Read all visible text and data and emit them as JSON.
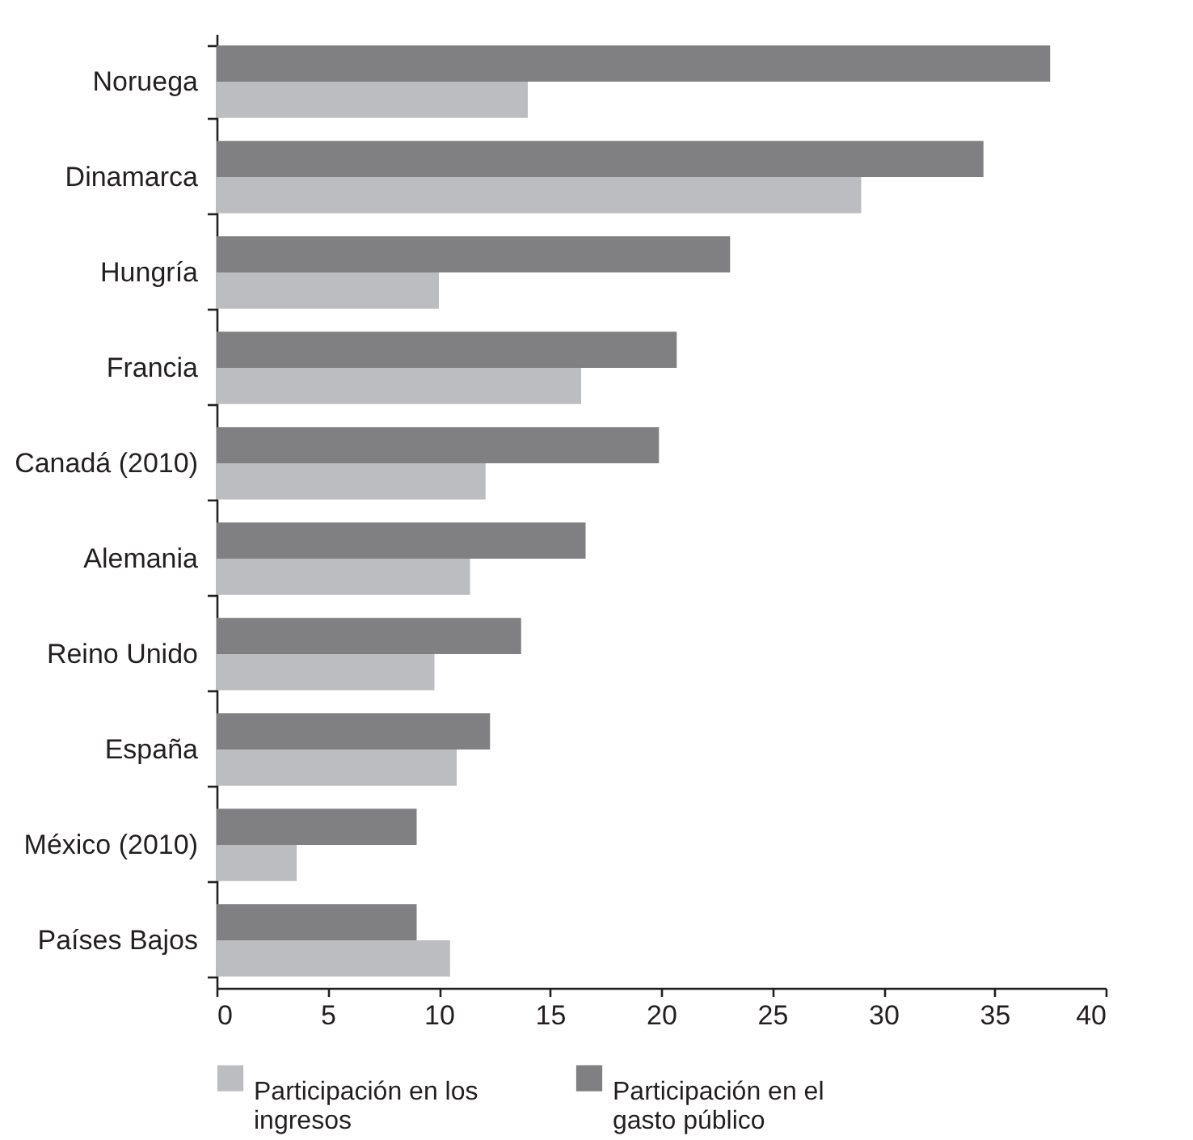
{
  "chart_data": {
    "type": "bar",
    "orientation": "horizontal",
    "categories": [
      "Noruega",
      "Dinamarca",
      "Hungría",
      "Francia",
      "Canadá (2010)",
      "Alemania",
      "Reino Unido",
      "España",
      "México (2010)",
      "Países Bajos"
    ],
    "series": [
      {
        "name": "Participación en los ingresos",
        "color": "#bcbdc0",
        "values": [
          14.0,
          29.0,
          10.0,
          16.4,
          12.1,
          11.4,
          9.8,
          10.8,
          3.6,
          10.5
        ]
      },
      {
        "name": "Participación en el gasto público",
        "color": "#808083",
        "values": [
          37.5,
          34.5,
          23.1,
          20.7,
          19.9,
          16.6,
          13.7,
          12.3,
          9.0,
          9.0
        ]
      }
    ],
    "xlim": [
      0,
      40
    ],
    "xticks": [
      0,
      5,
      10,
      15,
      20,
      25,
      30,
      35,
      40
    ],
    "grid": false,
    "legend": "bottom"
  }
}
